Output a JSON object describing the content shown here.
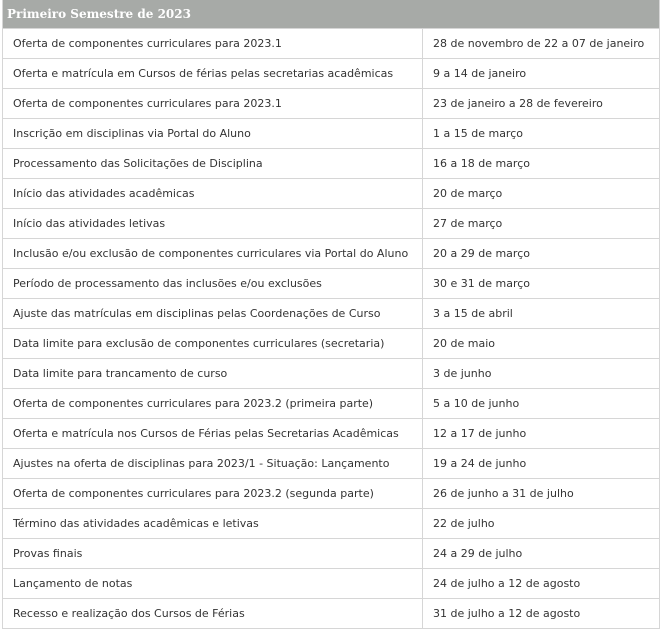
{
  "header": {
    "title": "Primeiro Semestre de 2023"
  },
  "table": {
    "rows": [
      [
        "Oferta de componentes curriculares para 2023.1",
        "28 de novembro de 22 a 07 de janeiro"
      ],
      [
        "Oferta e matrícula em Cursos de férias pelas secretarias acadêmicas",
        "9 a 14 de janeiro"
      ],
      [
        "Oferta de componentes curriculares para 2023.1",
        "23 de janeiro a 28 de fevereiro"
      ],
      [
        "Inscrição em disciplinas via Portal do Aluno",
        "1 a 15 de março"
      ],
      [
        "Processamento das Solicitações de Disciplina",
        "16 a 18 de março"
      ],
      [
        "Início das atividades acadêmicas",
        "20 de março"
      ],
      [
        "Início das atividades letivas",
        "27 de março"
      ],
      [
        "Inclusão e/ou exclusão de componentes curriculares via Portal do Aluno",
        "20 a 29 de março"
      ],
      [
        "Período de processamento das inclusões e/ou exclusões",
        "30 e 31 de março"
      ],
      [
        "Ajuste das matrículas em disciplinas pelas Coordenações de Curso",
        "3 a 15 de abril"
      ],
      [
        "Data limite para exclusão de componentes curriculares (secretaria)",
        "20 de maio"
      ],
      [
        "Data limite para trancamento de curso",
        "3 de junho"
      ],
      [
        "Oferta de componentes curriculares para 2023.2 (primeira parte)",
        "5 a 10 de junho"
      ],
      [
        "Oferta e matrícula nos Cursos de Férias pelas Secretarias Acadêmicas",
        "12 a 17 de junho"
      ],
      [
        "Ajustes na oferta de disciplinas para 2023/1 - Situação: Lançamento",
        "19 a 24 de junho"
      ],
      [
        "Oferta de componentes curriculares para 2023.2 (segunda parte)",
        "26 de junho a 31 de julho"
      ],
      [
        "Término das atividades acadêmicas e letivas",
        "22 de julho"
      ],
      [
        "Provas finais",
        "24 a 29 de julho"
      ],
      [
        "Lançamento de notas",
        "24 de julho a 12 de agosto"
      ],
      [
        "Recesso e realização dos Cursos de Férias",
        "31 de julho a 12 de agosto"
      ]
    ]
  }
}
